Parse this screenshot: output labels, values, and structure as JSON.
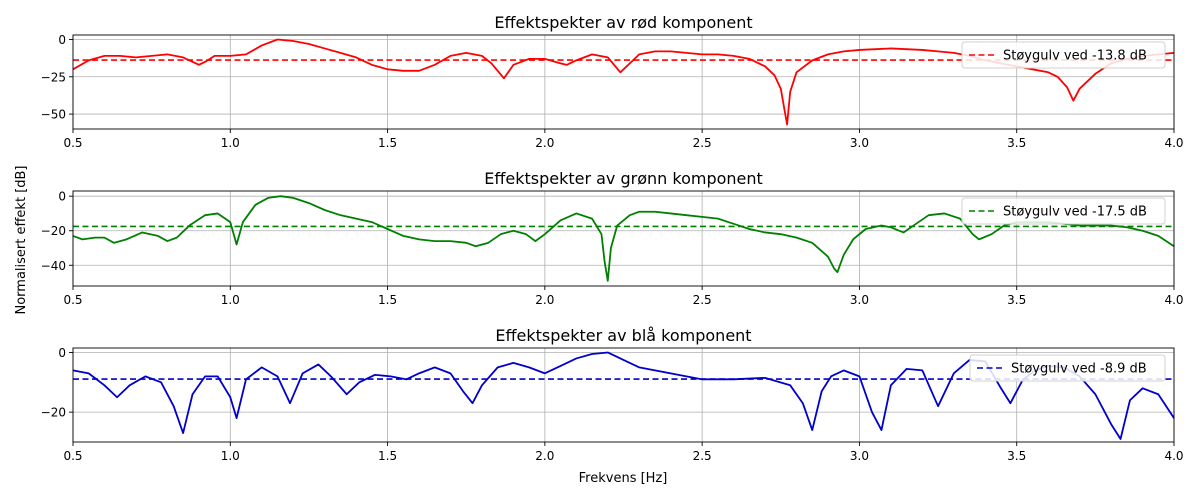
{
  "figure": {
    "ylabel": "Normalisert effekt [dB]",
    "xlabel": "Frekvens [Hz]"
  },
  "chart_data": [
    {
      "type": "line",
      "title": "Effektspekter av rød komponent",
      "color": "#ff0000",
      "xlim": [
        0.5,
        4.0
      ],
      "ylim": [
        -60,
        3
      ],
      "xticks": [
        0.5,
        1.0,
        1.5,
        2.0,
        2.5,
        3.0,
        3.5,
        4.0
      ],
      "xtick_labels": [
        "0.5",
        "1.0",
        "1.5",
        "2.0",
        "2.5",
        "3.0",
        "3.5",
        "4.0"
      ],
      "yticks": [
        0,
        -25,
        -50
      ],
      "ytick_labels": [
        "0",
        "−25",
        "−50"
      ],
      "grid": true,
      "legend_position": "top-right",
      "noise_floor": {
        "name": "Støygulv ved -13.8 dB",
        "value": -13.8
      },
      "series": [
        {
          "x": [
            0.5,
            0.55,
            0.6,
            0.65,
            0.7,
            0.75,
            0.8,
            0.85,
            0.88,
            0.9,
            0.92,
            0.95,
            1.0,
            1.05,
            1.1,
            1.15,
            1.2,
            1.25,
            1.3,
            1.35,
            1.4,
            1.45,
            1.5,
            1.55,
            1.6,
            1.65,
            1.7,
            1.75,
            1.8,
            1.83,
            1.85,
            1.87,
            1.9,
            1.95,
            2.0,
            2.05,
            2.07,
            2.1,
            2.15,
            2.2,
            2.22,
            2.24,
            2.27,
            2.3,
            2.35,
            2.4,
            2.45,
            2.5,
            2.55,
            2.6,
            2.65,
            2.7,
            2.73,
            2.75,
            2.76,
            2.77,
            2.78,
            2.8,
            2.85,
            2.9,
            2.95,
            3.0,
            3.05,
            3.1,
            3.15,
            3.2,
            3.25,
            3.3,
            3.35,
            3.4,
            3.45,
            3.5,
            3.55,
            3.6,
            3.63,
            3.66,
            3.68,
            3.7,
            3.75,
            3.8,
            3.85,
            3.9,
            3.95,
            4.0
          ],
          "y": [
            -20,
            -14,
            -11,
            -11,
            -12,
            -11,
            -10,
            -12,
            -15,
            -17,
            -15,
            -11,
            -11,
            -10,
            -4,
            0,
            -1,
            -3,
            -6,
            -9,
            -12,
            -17,
            -20,
            -21,
            -21,
            -17,
            -11,
            -9,
            -11,
            -16,
            -21,
            -26,
            -17,
            -13,
            -13,
            -16,
            -17,
            -14,
            -10,
            -12,
            -17,
            -22,
            -16,
            -10,
            -8,
            -8,
            -9,
            -10,
            -10,
            -11,
            -13,
            -18,
            -24,
            -33,
            -45,
            -57,
            -35,
            -22,
            -14,
            -10,
            -8,
            -7,
            -6.5,
            -6,
            -6.5,
            -7,
            -8,
            -9,
            -11,
            -14,
            -16,
            -18,
            -20,
            -22,
            -25,
            -32,
            -41,
            -33,
            -23,
            -16,
            -13,
            -11,
            -10,
            -9
          ]
        }
      ]
    },
    {
      "type": "line",
      "title": "Effektspekter av grønn komponent",
      "color": "#008000",
      "xlim": [
        0.5,
        4.0
      ],
      "ylim": [
        -52,
        3
      ],
      "xticks": [
        0.5,
        1.0,
        1.5,
        2.0,
        2.5,
        3.0,
        3.5,
        4.0
      ],
      "xtick_labels": [
        "0.5",
        "1.0",
        "1.5",
        "2.0",
        "2.5",
        "3.0",
        "3.5",
        "4.0"
      ],
      "yticks": [
        0,
        -20,
        -40
      ],
      "ytick_labels": [
        "0",
        "−20",
        "−40"
      ],
      "grid": true,
      "legend_position": "top-right",
      "noise_floor": {
        "name": "Støygulv ved -17.5 dB",
        "value": -17.5
      },
      "series": [
        {
          "x": [
            0.5,
            0.53,
            0.57,
            0.6,
            0.63,
            0.67,
            0.72,
            0.77,
            0.8,
            0.83,
            0.87,
            0.92,
            0.96,
            1.0,
            1.02,
            1.04,
            1.08,
            1.12,
            1.16,
            1.2,
            1.25,
            1.3,
            1.35,
            1.4,
            1.45,
            1.5,
            1.55,
            1.6,
            1.65,
            1.7,
            1.75,
            1.78,
            1.82,
            1.86,
            1.9,
            1.94,
            1.97,
            2.0,
            2.05,
            2.1,
            2.15,
            2.18,
            2.19,
            2.2,
            2.21,
            2.23,
            2.27,
            2.3,
            2.35,
            2.4,
            2.45,
            2.5,
            2.55,
            2.6,
            2.65,
            2.7,
            2.75,
            2.8,
            2.85,
            2.9,
            2.92,
            2.93,
            2.95,
            2.98,
            3.02,
            3.07,
            3.1,
            3.14,
            3.18,
            3.22,
            3.27,
            3.32,
            3.36,
            3.38,
            3.42,
            3.46,
            3.5,
            3.55,
            3.6,
            3.65,
            3.7,
            3.75,
            3.8,
            3.85,
            3.9,
            3.95,
            4.0
          ],
          "y": [
            -23,
            -25,
            -24,
            -24,
            -27,
            -25,
            -21,
            -23,
            -26,
            -24,
            -17,
            -11,
            -10,
            -15,
            -28,
            -15,
            -5,
            -1,
            0,
            -1,
            -4,
            -8,
            -11,
            -13,
            -15,
            -19,
            -23,
            -25,
            -26,
            -26,
            -27,
            -29,
            -27,
            -22,
            -20,
            -22,
            -26,
            -22,
            -14,
            -10,
            -13,
            -22,
            -38,
            -49,
            -30,
            -17,
            -11,
            -9,
            -9,
            -10,
            -11,
            -12,
            -13,
            -16,
            -19,
            -21,
            -22,
            -24,
            -27,
            -35,
            -42,
            -44,
            -34,
            -25,
            -19,
            -17,
            -18,
            -21,
            -16,
            -11,
            -10,
            -13,
            -22,
            -25,
            -22,
            -17,
            -15,
            -15,
            -15,
            -16,
            -17,
            -17,
            -17,
            -18,
            -20,
            -23,
            -29
          ]
        }
      ]
    },
    {
      "type": "line",
      "title": "Effektspekter av blå komponent",
      "color": "#0000cc",
      "xlim": [
        0.5,
        4.0
      ],
      "ylim": [
        -30,
        1.5
      ],
      "xticks": [
        0.5,
        1.0,
        1.5,
        2.0,
        2.5,
        3.0,
        3.5,
        4.0
      ],
      "xtick_labels": [
        "0.5",
        "1.0",
        "1.5",
        "2.0",
        "2.5",
        "3.0",
        "3.5",
        "4.0"
      ],
      "yticks": [
        0,
        -20
      ],
      "ytick_labels": [
        "0",
        "−20"
      ],
      "grid": true,
      "legend_position": "top-right",
      "noise_floor": {
        "name": "Støygulv ved -8.9 dB",
        "value": -8.9
      },
      "series": [
        {
          "x": [
            0.5,
            0.55,
            0.6,
            0.64,
            0.68,
            0.73,
            0.78,
            0.82,
            0.85,
            0.88,
            0.92,
            0.96,
            1.0,
            1.02,
            1.05,
            1.1,
            1.15,
            1.19,
            1.23,
            1.28,
            1.32,
            1.37,
            1.41,
            1.46,
            1.51,
            1.56,
            1.6,
            1.65,
            1.7,
            1.74,
            1.77,
            1.8,
            1.85,
            1.9,
            1.95,
            2.0,
            2.05,
            2.1,
            2.15,
            2.2,
            2.25,
            2.3,
            2.35,
            2.4,
            2.5,
            2.6,
            2.7,
            2.78,
            2.82,
            2.85,
            2.88,
            2.91,
            2.95,
            3.0,
            3.04,
            3.07,
            3.1,
            3.15,
            3.2,
            3.25,
            3.3,
            3.35,
            3.4,
            3.45,
            3.48,
            3.52,
            3.56,
            3.6,
            3.65,
            3.7,
            3.75,
            3.8,
            3.83,
            3.86,
            3.9,
            3.95,
            4.0
          ],
          "y": [
            -6,
            -7,
            -11,
            -15,
            -11,
            -8,
            -10,
            -18,
            -27,
            -14,
            -8,
            -8,
            -15,
            -22,
            -9,
            -5,
            -8,
            -17,
            -7,
            -4,
            -8,
            -14,
            -10,
            -7.5,
            -8,
            -9,
            -7,
            -5,
            -7,
            -13,
            -17,
            -11,
            -5,
            -3.5,
            -5,
            -7,
            -4.5,
            -2,
            -0.5,
            0,
            -2.5,
            -5,
            -6,
            -7,
            -9,
            -9,
            -8.5,
            -11,
            -17,
            -26,
            -13,
            -8,
            -6,
            -8,
            -20,
            -26,
            -11,
            -5.5,
            -6,
            -18,
            -7,
            -2.5,
            -3,
            -12,
            -17,
            -9,
            -6,
            -4.5,
            -5,
            -8,
            -14,
            -24,
            -29,
            -16,
            -12,
            -14,
            -22
          ]
        }
      ]
    }
  ]
}
